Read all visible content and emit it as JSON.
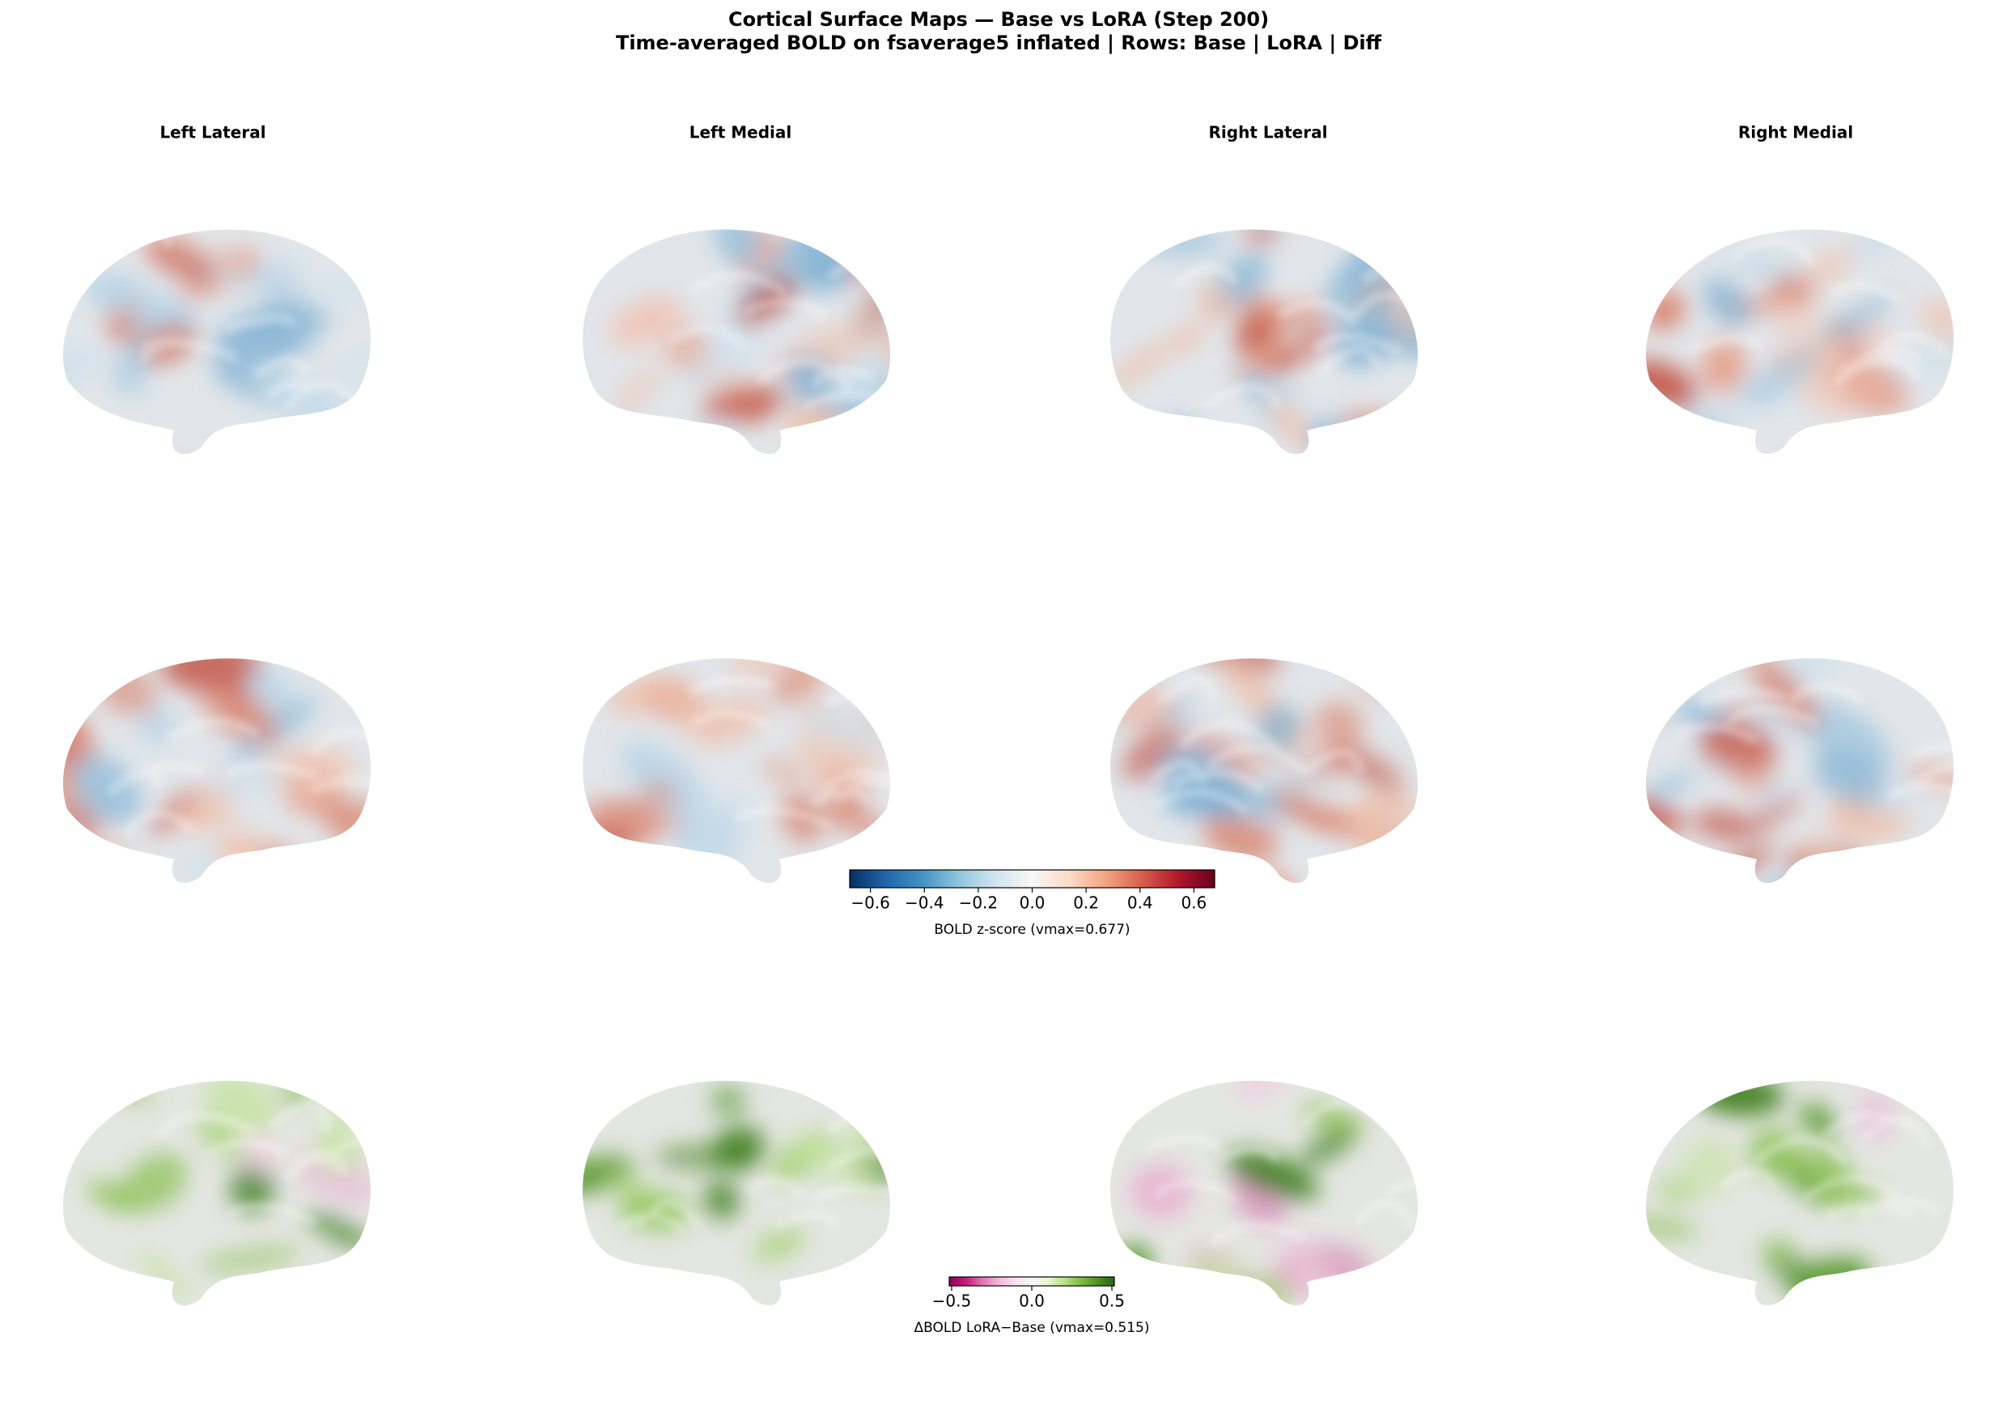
{
  "figure": {
    "title": "Cortical Surface Maps — Base vs LoRA (Step 200)",
    "subtitle": "Time-averaged BOLD on fsaverage5 inflated  |  Rows: Base | LoRA | Diff",
    "columns": [
      "Left Lateral",
      "Left Medial",
      "Right Lateral",
      "Right Medial"
    ],
    "colorbars": [
      {
        "label": "BOLD z-score (vmax=0.677)",
        "lim": [
          -0.677,
          0.677
        ],
        "ticks": [
          {
            "value": -0.6,
            "label": "−0.6"
          },
          {
            "value": -0.4,
            "label": "−0.4"
          },
          {
            "value": -0.2,
            "label": "−0.2"
          },
          {
            "value": 0,
            "label": "0.0"
          },
          0.2,
          0.4,
          0.6
        ],
        "colors": [
          "#053061",
          "#2166ac",
          "#4393c3",
          "#92c5de",
          "#d1e5f0",
          "#f7f7f7",
          "#fddbc7",
          "#f4a582",
          "#d6604d",
          "#b2182b",
          "#67001f"
        ]
      },
      {
        "label": "ΔBOLD LoRA−Base (vmax=0.515)",
        "lim": [
          -0.515,
          0.515
        ],
        "ticks": [
          {
            "value": -0.5,
            "label": "−0.5"
          },
          {
            "value": 0,
            "label": "0.0"
          },
          0.5
        ],
        "colors": [
          "#8e0152",
          "#c51b7d",
          "#de77ae",
          "#f1b6da",
          "#fde0ef",
          "#f7f7f7",
          "#e6f5d0",
          "#b8e186",
          "#7fbc41",
          "#4d9221",
          "#276419"
        ]
      }
    ]
  }
}
